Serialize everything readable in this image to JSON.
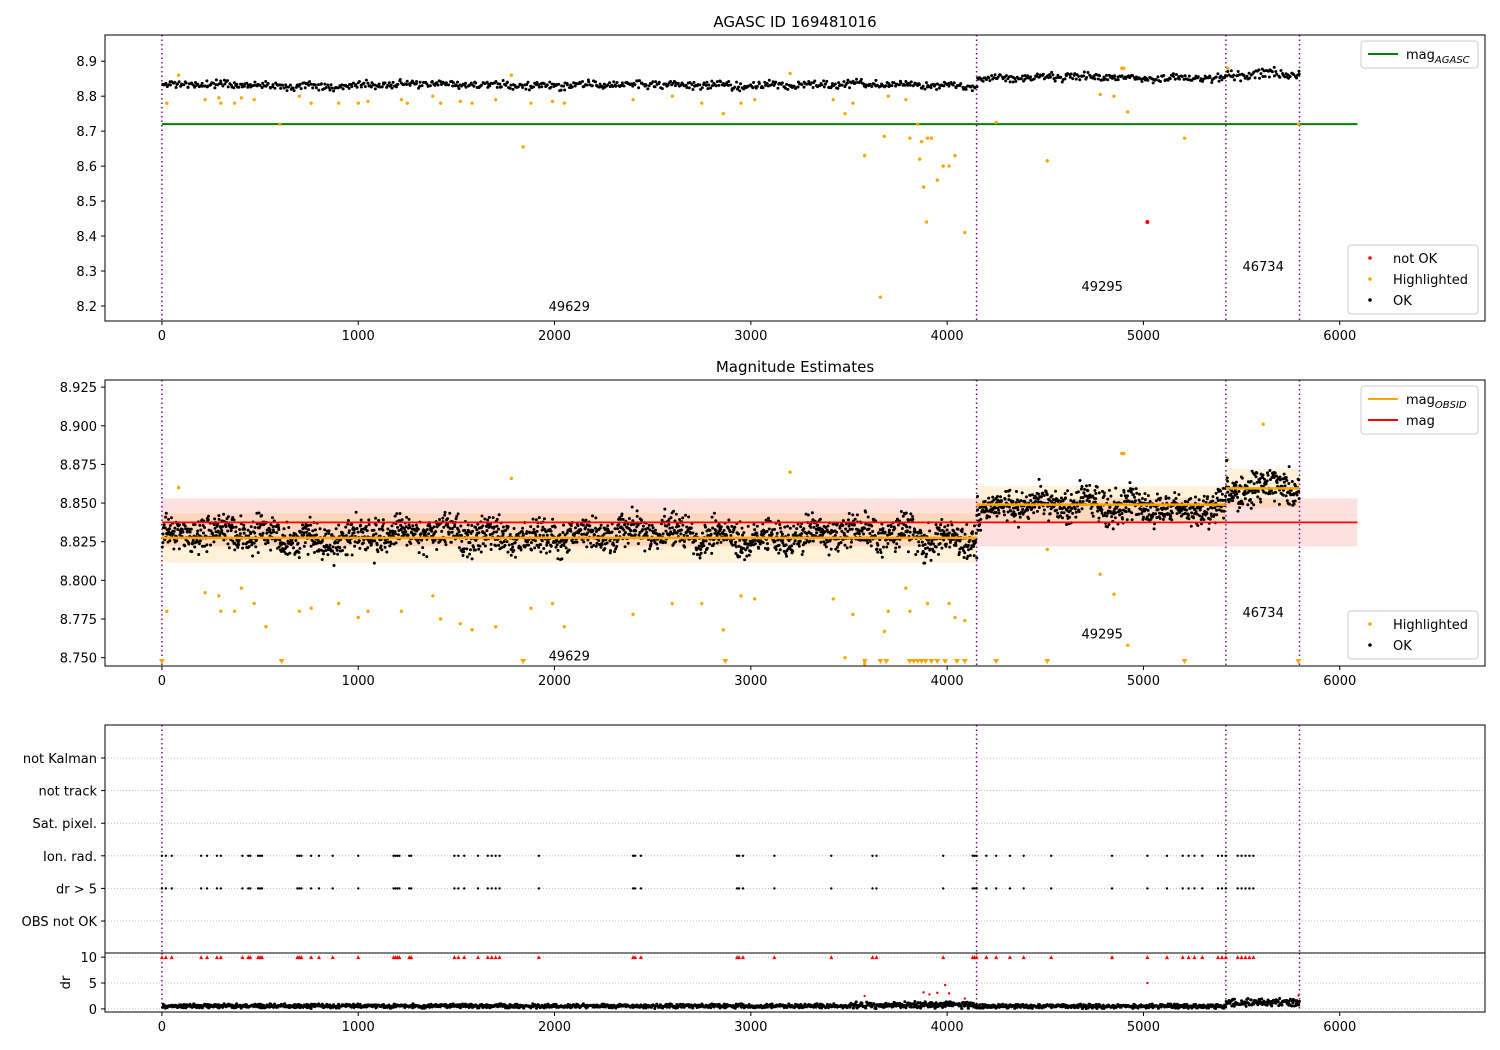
{
  "chart_data": [
    {
      "type": "scatter",
      "title": "AGASC ID 169481016",
      "xlim": [
        -290,
        6740
      ],
      "ylim": [
        8.157,
        8.975
      ],
      "xticks": [
        0,
        1000,
        2000,
        3000,
        4000,
        5000,
        6000
      ],
      "yticks": [
        8.2,
        8.3,
        8.4,
        8.5,
        8.6,
        8.7,
        8.8,
        8.9
      ],
      "ytick_format": 1,
      "grid": false,
      "obs_boundaries": [
        0,
        4150,
        5420,
        5795
      ],
      "obsid_labels": [
        {
          "text": "49629",
          "x": 2075,
          "y": 8.2
        },
        {
          "text": "49295",
          "x": 4790,
          "y": 8.257
        },
        {
          "text": "46734",
          "x": 5610,
          "y": 8.314
        }
      ],
      "agasc_mag": {
        "name": "mag$_{AGASC}$",
        "value": 8.72,
        "x": [
          0,
          6090
        ],
        "color": "#008000"
      },
      "ok_band": [
        {
          "x": [
            0,
            4150
          ],
          "center": 8.832,
          "spread": 0.012
        },
        {
          "x": [
            4150,
            5420
          ],
          "center": 8.853,
          "spread": 0.012
        },
        {
          "x": [
            5420,
            5795
          ],
          "center": 8.86,
          "spread": 0.014
        }
      ],
      "highlighted_points": [
        [
          25,
          8.78
        ],
        [
          85,
          8.86
        ],
        [
          220,
          8.79
        ],
        [
          290,
          8.795
        ],
        [
          300,
          8.78
        ],
        [
          370,
          8.78
        ],
        [
          405,
          8.795
        ],
        [
          470,
          8.79
        ],
        [
          600,
          8.72
        ],
        [
          700,
          8.8
        ],
        [
          760,
          8.78
        ],
        [
          900,
          8.78
        ],
        [
          1000,
          8.78
        ],
        [
          1050,
          8.785
        ],
        [
          1220,
          8.79
        ],
        [
          1250,
          8.78
        ],
        [
          1380,
          8.8
        ],
        [
          1420,
          8.78
        ],
        [
          1520,
          8.785
        ],
        [
          1580,
          8.78
        ],
        [
          1700,
          8.79
        ],
        [
          1780,
          8.86
        ],
        [
          1840,
          8.655
        ],
        [
          1880,
          8.78
        ],
        [
          1990,
          8.785
        ],
        [
          2050,
          8.78
        ],
        [
          2400,
          8.79
        ],
        [
          2600,
          8.8
        ],
        [
          2750,
          8.78
        ],
        [
          2860,
          8.75
        ],
        [
          2950,
          8.78
        ],
        [
          3020,
          8.79
        ],
        [
          3200,
          8.865
        ],
        [
          3420,
          8.79
        ],
        [
          3480,
          8.75
        ],
        [
          3520,
          8.78
        ],
        [
          3580,
          8.63
        ],
        [
          3660,
          8.225
        ],
        [
          3680,
          8.685
        ],
        [
          3700,
          8.8
        ],
        [
          3790,
          8.79
        ],
        [
          3810,
          8.68
        ],
        [
          3850,
          8.72
        ],
        [
          3860,
          8.62
        ],
        [
          3870,
          8.67
        ],
        [
          3880,
          8.54
        ],
        [
          3900,
          8.68
        ],
        [
          3895,
          8.44
        ],
        [
          3920,
          8.68
        ],
        [
          3950,
          8.56
        ],
        [
          3980,
          8.6
        ],
        [
          4010,
          8.6
        ],
        [
          4040,
          8.63
        ],
        [
          4090,
          8.41
        ],
        [
          4250,
          8.725
        ],
        [
          4510,
          8.615
        ],
        [
          4780,
          8.805
        ],
        [
          4850,
          8.8
        ],
        [
          4890,
          8.88
        ],
        [
          4900,
          8.88
        ],
        [
          4920,
          8.755
        ],
        [
          5210,
          8.68
        ],
        [
          5430,
          8.88
        ],
        [
          5790,
          8.72
        ]
      ],
      "not_ok_points": [
        [
          5020,
          8.44
        ]
      ],
      "legends": [
        {
          "position": "upper-right",
          "entries": [
            {
              "label": "mag$_{AGASC}$",
              "kind": "line",
              "color": "#008000"
            }
          ]
        },
        {
          "position": "lower-right",
          "entries": [
            {
              "label": "not OK",
              "kind": "dot",
              "color": "#ff0000"
            },
            {
              "label": "Highlighted",
              "kind": "dot",
              "color": "#ffa500"
            },
            {
              "label": "OK",
              "kind": "dot",
              "color": "#000000"
            }
          ]
        }
      ]
    },
    {
      "type": "scatter",
      "title": "Magnitude Estimates",
      "xlim": [
        -290,
        6740
      ],
      "ylim": [
        8.7446,
        8.9296
      ],
      "xticks": [
        0,
        1000,
        2000,
        3000,
        4000,
        5000,
        6000
      ],
      "yticks": [
        8.75,
        8.775,
        8.8,
        8.825,
        8.85,
        8.875,
        8.9,
        8.925
      ],
      "ytick_format": 3,
      "grid": false,
      "obs_boundaries": [
        0,
        4150,
        5420,
        5795
      ],
      "obsid_labels": [
        {
          "text": "49629",
          "x": 2075,
          "y": 8.7515
        },
        {
          "text": "49295",
          "x": 4790,
          "y": 8.7655
        },
        {
          "text": "46734",
          "x": 5610,
          "y": 8.7795
        }
      ],
      "mag": {
        "name": "mag",
        "value": 8.8375,
        "band": [
          8.822,
          8.853
        ],
        "x": [
          0,
          6090
        ],
        "color": "#ff0000"
      },
      "mag_obsid": {
        "name": "mag$_{OBSID}$",
        "color": "#ffa500",
        "segments": [
          {
            "x": [
              0,
              4150
            ],
            "value": 8.8275,
            "band": [
              8.8115,
              8.8435
            ]
          },
          {
            "x": [
              4150,
              5420
            ],
            "value": 8.849,
            "band": [
              8.8375,
              8.861
            ]
          },
          {
            "x": [
              5420,
              5795
            ],
            "value": 8.8595,
            "band": [
              8.847,
              8.872
            ]
          }
        ]
      },
      "ok_band": [
        {
          "x": [
            0,
            4150
          ],
          "center": 8.829,
          "spread": 0.012
        },
        {
          "x": [
            4150,
            5420
          ],
          "center": 8.848,
          "spread": 0.011
        },
        {
          "x": [
            5420,
            5795
          ],
          "center": 8.858,
          "spread": 0.014
        }
      ],
      "highlighted_points": [
        [
          25,
          8.78
        ],
        [
          85,
          8.86
        ],
        [
          220,
          8.792
        ],
        [
          290,
          8.79
        ],
        [
          300,
          8.78
        ],
        [
          370,
          8.78
        ],
        [
          405,
          8.795
        ],
        [
          470,
          8.785
        ],
        [
          530,
          8.77
        ],
        [
          700,
          8.78
        ],
        [
          760,
          8.782
        ],
        [
          900,
          8.785
        ],
        [
          1000,
          8.776
        ],
        [
          1050,
          8.78
        ],
        [
          1220,
          8.78
        ],
        [
          1380,
          8.79
        ],
        [
          1420,
          8.775
        ],
        [
          1520,
          8.772
        ],
        [
          1580,
          8.768
        ],
        [
          1700,
          8.77
        ],
        [
          1780,
          8.866
        ],
        [
          1880,
          8.782
        ],
        [
          1990,
          8.785
        ],
        [
          2050,
          8.77
        ],
        [
          2400,
          8.778
        ],
        [
          2600,
          8.785
        ],
        [
          2750,
          8.785
        ],
        [
          2860,
          8.768
        ],
        [
          2950,
          8.79
        ],
        [
          3020,
          8.788
        ],
        [
          3200,
          8.87
        ],
        [
          3420,
          8.788
        ],
        [
          3480,
          8.75
        ],
        [
          3520,
          8.778
        ],
        [
          3580,
          8.746
        ],
        [
          3680,
          8.767
        ],
        [
          3700,
          8.78
        ],
        [
          3790,
          8.795
        ],
        [
          3810,
          8.78
        ],
        [
          3900,
          8.785
        ],
        [
          4010,
          8.785
        ],
        [
          4040,
          8.776
        ],
        [
          4090,
          8.774
        ],
        [
          4510,
          8.82
        ],
        [
          4780,
          8.804
        ],
        [
          4850,
          8.791
        ],
        [
          4890,
          8.882
        ],
        [
          4900,
          8.882
        ],
        [
          4920,
          8.758
        ],
        [
          5430,
          8.878
        ],
        [
          5610,
          8.901
        ]
      ],
      "highlighted_clipped_x": [
        0,
        610,
        1840,
        2870,
        3580,
        3660,
        3690,
        3810,
        3830,
        3850,
        3870,
        3890,
        3920,
        3950,
        3990,
        4050,
        4090,
        4250,
        4510,
        5210,
        5790
      ],
      "legends": [
        {
          "position": "upper-right",
          "entries": [
            {
              "label": "mag$_{OBSID}$",
              "kind": "line",
              "color": "#ffa500"
            },
            {
              "label": "mag",
              "kind": "line",
              "color": "#ff0000"
            }
          ]
        },
        {
          "position": "lower-right",
          "entries": [
            {
              "label": "Highlighted",
              "kind": "dot",
              "color": "#ffa500"
            },
            {
              "label": "OK",
              "kind": "dot",
              "color": "#000000"
            }
          ]
        }
      ]
    },
    {
      "type": "scatter",
      "title": "",
      "xlim": [
        -290,
        6740
      ],
      "grid": true,
      "obs_boundaries": [
        0,
        4150,
        5420,
        5795
      ],
      "flag_rows": [
        "not Kalman",
        "not track",
        "Sat. pixel.",
        "Ion. rad.",
        "dr > 5",
        "OBS not OK"
      ],
      "flagged_x": [
        0,
        20,
        50,
        200,
        230,
        280,
        300,
        410,
        440,
        450,
        490,
        500,
        510,
        690,
        700,
        710,
        760,
        800,
        870,
        1000,
        1180,
        1190,
        1200,
        1210,
        1260,
        1270,
        1490,
        1510,
        1540,
        1610,
        1660,
        1680,
        1700,
        1720,
        1920,
        2400,
        2410,
        2440,
        2930,
        2940,
        2960,
        3120,
        3410,
        3620,
        3640,
        3980,
        4130,
        4140,
        4150,
        4200,
        4250,
        4320,
        4390,
        4530,
        4840,
        5020,
        5120,
        5200,
        5230,
        5260,
        5300,
        5380,
        5400,
        5420,
        5480,
        5500,
        5520,
        5540,
        5560
      ]
    },
    {
      "type": "scatter",
      "title": "",
      "ylabel": "dr",
      "xlim": [
        -290,
        6740
      ],
      "ylim": [
        -0.6,
        10.8
      ],
      "xticks": [
        0,
        1000,
        2000,
        3000,
        4000,
        5000,
        6000
      ],
      "yticks": [
        0,
        5,
        10
      ],
      "grid": true,
      "obs_boundaries": [
        0,
        4150,
        5420,
        5795
      ],
      "clip_marker_value": 10,
      "dr_baseline": [
        {
          "x": [
            0,
            3500
          ],
          "center": 0.55,
          "spread": 0.3
        },
        {
          "x": [
            3500,
            4150
          ],
          "center": 0.75,
          "spread": 0.45
        },
        {
          "x": [
            4150,
            5420
          ],
          "center": 0.5,
          "spread": 0.3
        },
        {
          "x": [
            5420,
            5795
          ],
          "center": 1.2,
          "spread": 0.55
        }
      ],
      "dr_outliers": [
        [
          3580,
          2.5
        ],
        [
          3880,
          3.2
        ],
        [
          3910,
          2.8
        ],
        [
          3950,
          3.1
        ],
        [
          3990,
          4.6
        ],
        [
          4010,
          3.0
        ],
        [
          4090,
          2.0
        ],
        [
          5020,
          5.0
        ],
        [
          5790,
          2.6
        ]
      ]
    }
  ]
}
